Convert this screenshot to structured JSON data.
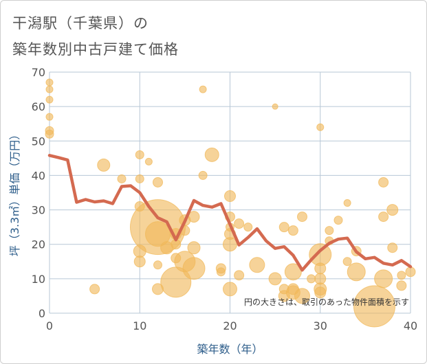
{
  "title_line1": "干潟駅（千葉県）の",
  "title_line2": "築年数別中古戸建て価格",
  "chart_data": {
    "type": "scatter+line",
    "xlabel": "築年数（年）",
    "ylabel": "坪（3.3㎡）単価（万円）",
    "xlim": [
      0,
      40
    ],
    "ylim": [
      0,
      70
    ],
    "xticks": [
      0,
      10,
      20,
      30,
      40
    ],
    "yticks": [
      0,
      10,
      20,
      30,
      40,
      50,
      60,
      70
    ],
    "grid": true,
    "note": "円の大きさは、取引のあった物件面積を示す",
    "colors": {
      "bubble": "#f0b85a",
      "line": "#d46a50",
      "grid": "#b7c7d6"
    },
    "trend_line": {
      "x": [
        0,
        1,
        2,
        3,
        4,
        5,
        6,
        7,
        8,
        9,
        10,
        11,
        12,
        13,
        14,
        15,
        16,
        17,
        18,
        19,
        20,
        21,
        22,
        23,
        24,
        25,
        26,
        27,
        28,
        29,
        30,
        31,
        32,
        33,
        34,
        35,
        36,
        37,
        38,
        39,
        40
      ],
      "y": [
        45.8,
        45.2,
        44.5,
        32.2,
        33.0,
        32.3,
        32.6,
        31.8,
        36.8,
        37.0,
        35.0,
        31.0,
        27.7,
        26.5,
        21.3,
        26.7,
        32.7,
        31.3,
        30.8,
        31.8,
        25.8,
        19.8,
        22.0,
        24.5,
        21.0,
        18.8,
        19.3,
        16.8,
        12.5,
        15.5,
        18.2,
        20.3,
        21.5,
        21.8,
        17.8,
        15.8,
        16.2,
        14.5,
        14.0,
        15.3,
        13.5
      ]
    },
    "bubbles": [
      {
        "x": 0,
        "y": 67,
        "s": 5
      },
      {
        "x": 0,
        "y": 65,
        "s": 5
      },
      {
        "x": 0,
        "y": 62,
        "s": 5
      },
      {
        "x": 0,
        "y": 57,
        "s": 5
      },
      {
        "x": 0,
        "y": 53,
        "s": 6
      },
      {
        "x": 0,
        "y": 52,
        "s": 6
      },
      {
        "x": 5,
        "y": 7,
        "s": 7
      },
      {
        "x": 6,
        "y": 43,
        "s": 9
      },
      {
        "x": 8,
        "y": 39,
        "s": 6
      },
      {
        "x": 10,
        "y": 46,
        "s": 6
      },
      {
        "x": 11,
        "y": 44,
        "s": 5
      },
      {
        "x": 10,
        "y": 39,
        "s": 6
      },
      {
        "x": 12,
        "y": 38,
        "s": 7
      },
      {
        "x": 10,
        "y": 31,
        "s": 7
      },
      {
        "x": 10,
        "y": 18,
        "s": 9
      },
      {
        "x": 10,
        "y": 15,
        "s": 8
      },
      {
        "x": 12,
        "y": 25,
        "s": 40
      },
      {
        "x": 12,
        "y": 23,
        "s": 18
      },
      {
        "x": 13,
        "y": 19,
        "s": 9
      },
      {
        "x": 12,
        "y": 14,
        "s": 6
      },
      {
        "x": 12,
        "y": 7,
        "s": 8
      },
      {
        "x": 14,
        "y": 23,
        "s": 8
      },
      {
        "x": 14,
        "y": 20,
        "s": 7
      },
      {
        "x": 15,
        "y": 24,
        "s": 7
      },
      {
        "x": 15,
        "y": 27,
        "s": 8
      },
      {
        "x": 16,
        "y": 28,
        "s": 8
      },
      {
        "x": 14,
        "y": 16,
        "s": 7
      },
      {
        "x": 15,
        "y": 15,
        "s": 15
      },
      {
        "x": 16,
        "y": 13,
        "s": 16
      },
      {
        "x": 14,
        "y": 9,
        "s": 22
      },
      {
        "x": 16,
        "y": 19,
        "s": 9
      },
      {
        "x": 17,
        "y": 65,
        "s": 5
      },
      {
        "x": 17,
        "y": 40,
        "s": 6
      },
      {
        "x": 18,
        "y": 46,
        "s": 10
      },
      {
        "x": 20,
        "y": 34,
        "s": 8
      },
      {
        "x": 20,
        "y": 28,
        "s": 7
      },
      {
        "x": 20,
        "y": 25,
        "s": 6
      },
      {
        "x": 20,
        "y": 23,
        "s": 8
      },
      {
        "x": 20,
        "y": 20,
        "s": 10
      },
      {
        "x": 19,
        "y": 13,
        "s": 7
      },
      {
        "x": 19,
        "y": 12,
        "s": 6
      },
      {
        "x": 21,
        "y": 11,
        "s": 7
      },
      {
        "x": 20,
        "y": 7,
        "s": 10
      },
      {
        "x": 21,
        "y": 26,
        "s": 7
      },
      {
        "x": 22,
        "y": 25,
        "s": 6
      },
      {
        "x": 23,
        "y": 14,
        "s": 11
      },
      {
        "x": 25,
        "y": 60,
        "s": 4
      },
      {
        "x": 25,
        "y": 10,
        "s": 9
      },
      {
        "x": 26,
        "y": 25,
        "s": 7
      },
      {
        "x": 26,
        "y": 7,
        "s": 7
      },
      {
        "x": 26,
        "y": 5,
        "s": 8
      },
      {
        "x": 27,
        "y": 24,
        "s": 7
      },
      {
        "x": 27,
        "y": 12,
        "s": 12
      },
      {
        "x": 27,
        "y": 7,
        "s": 8
      },
      {
        "x": 27,
        "y": 6,
        "s": 10
      },
      {
        "x": 28,
        "y": 28,
        "s": 7
      },
      {
        "x": 28,
        "y": 5,
        "s": 11
      },
      {
        "x": 29,
        "y": 10,
        "s": 6
      },
      {
        "x": 30,
        "y": 54,
        "s": 5
      },
      {
        "x": 30,
        "y": 17,
        "s": 16
      },
      {
        "x": 30,
        "y": 13,
        "s": 8
      },
      {
        "x": 30,
        "y": 10,
        "s": 8
      },
      {
        "x": 30,
        "y": 7,
        "s": 9
      },
      {
        "x": 30,
        "y": 6,
        "s": 8
      },
      {
        "x": 31,
        "y": 24,
        "s": 6
      },
      {
        "x": 31,
        "y": 21,
        "s": 6
      },
      {
        "x": 32,
        "y": 27,
        "s": 6
      },
      {
        "x": 33,
        "y": 32,
        "s": 5
      },
      {
        "x": 33,
        "y": 15,
        "s": 6
      },
      {
        "x": 34,
        "y": 18,
        "s": 7
      },
      {
        "x": 34,
        "y": 12,
        "s": 13
      },
      {
        "x": 36,
        "y": 2,
        "s": 30
      },
      {
        "x": 37,
        "y": 38,
        "s": 7
      },
      {
        "x": 37,
        "y": 28,
        "s": 7
      },
      {
        "x": 37,
        "y": 10,
        "s": 13
      },
      {
        "x": 38,
        "y": 30,
        "s": 8
      },
      {
        "x": 38,
        "y": 19,
        "s": 7
      },
      {
        "x": 39,
        "y": 11,
        "s": 6
      },
      {
        "x": 39,
        "y": 8,
        "s": 7
      },
      {
        "x": 40,
        "y": 12,
        "s": 7
      }
    ]
  }
}
